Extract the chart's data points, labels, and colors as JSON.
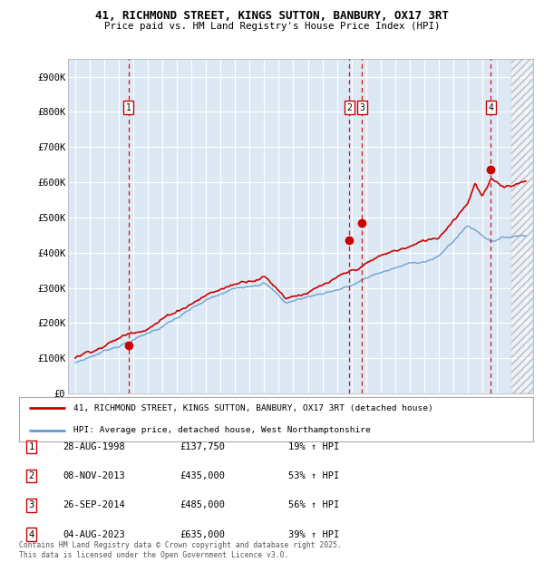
{
  "title_line1": "41, RICHMOND STREET, KINGS SUTTON, BANBURY, OX17 3RT",
  "title_line2": "Price paid vs. HM Land Registry's House Price Index (HPI)",
  "background_color": "#ffffff",
  "plot_bg_color": "#dce9f5",
  "grid_color": "#ffffff",
  "hpi_line_color": "#6699cc",
  "price_line_color": "#cc0000",
  "transactions": [
    {
      "label": 1,
      "date_num": 1998.65,
      "price": 137750
    },
    {
      "label": 2,
      "date_num": 2013.85,
      "price": 435000
    },
    {
      "label": 3,
      "date_num": 2014.73,
      "price": 485000
    },
    {
      "label": 4,
      "date_num": 2023.59,
      "price": 635000
    }
  ],
  "transaction_labels": [
    {
      "num": 1,
      "date": "28-AUG-1998",
      "price": "£137,750",
      "hpi_pct": "19% ↑ HPI"
    },
    {
      "num": 2,
      "date": "08-NOV-2013",
      "price": "£435,000",
      "hpi_pct": "53% ↑ HPI"
    },
    {
      "num": 3,
      "date": "26-SEP-2014",
      "price": "£485,000",
      "hpi_pct": "56% ↑ HPI"
    },
    {
      "num": 4,
      "date": "04-AUG-2023",
      "price": "£635,000",
      "hpi_pct": "39% ↑ HPI"
    }
  ],
  "legend_line1": "41, RICHMOND STREET, KINGS SUTTON, BANBURY, OX17 3RT (detached house)",
  "legend_line2": "HPI: Average price, detached house, West Northamptonshire",
  "footnote": "Contains HM Land Registry data © Crown copyright and database right 2025.\nThis data is licensed under the Open Government Licence v3.0.",
  "ylim": [
    0,
    950000
  ],
  "xlim_start": 1994.5,
  "xlim_end": 2026.5,
  "yticks": [
    0,
    100000,
    200000,
    300000,
    400000,
    500000,
    600000,
    700000,
    800000,
    900000
  ],
  "ytick_labels": [
    "£0",
    "£100K",
    "£200K",
    "£300K",
    "£400K",
    "£500K",
    "£600K",
    "£700K",
    "£800K",
    "£900K"
  ],
  "future_cutoff": 2025.0
}
